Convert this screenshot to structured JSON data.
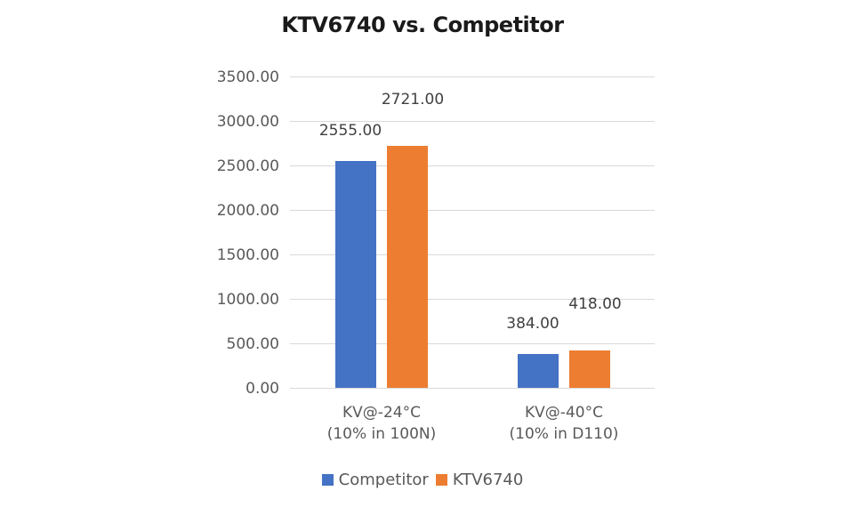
{
  "chart_data": {
    "type": "bar",
    "title": "KTV6740 vs. Competitor",
    "categories": [
      "KV@-24°C\n(10% in 100N)",
      "KV@-40°C\n(10% in D110)"
    ],
    "category_lines": [
      [
        "KV@-24°C",
        "(10% in 100N)"
      ],
      [
        "KV@-40°C",
        "(10% in D110)"
      ]
    ],
    "series": [
      {
        "name": "Competitor",
        "color": "#4472C4",
        "values": [
          2555.0,
          384.0
        ],
        "labels": [
          "2555.00",
          "384.00"
        ]
      },
      {
        "name": "KTV6740",
        "color": "#ED7D31",
        "values": [
          2721.0,
          418.0
        ],
        "labels": [
          "2721.00",
          "418.00"
        ]
      }
    ],
    "xlabel": "",
    "ylabel": "",
    "ylim": [
      0,
      3500
    ],
    "yticks": [
      "0.00",
      "500.00",
      "1000.00",
      "1500.00",
      "2000.00",
      "2500.00",
      "3000.00",
      "3500.00"
    ],
    "grid": true,
    "legend_position": "bottom"
  }
}
